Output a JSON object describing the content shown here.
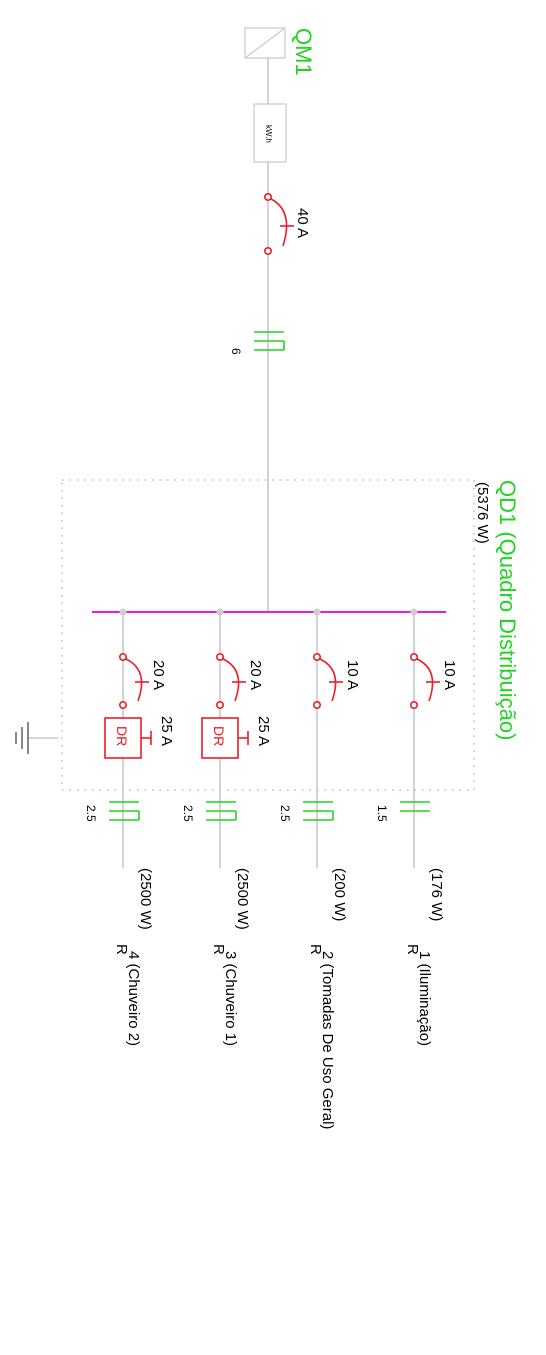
{
  "colors": {
    "wire": "#c8c8c8",
    "breaker": "#ee1c25",
    "cable": "#22d322",
    "busbar": "#e619e6",
    "label": "#000000",
    "title": "#22d322"
  },
  "supply": {
    "name": "QM1",
    "meter_label": "kW.h",
    "main_breaker": "40 A",
    "cable_size": "6"
  },
  "panel": {
    "name": "QD1 (Quadro Distribuição)",
    "power": "(5376 W)"
  },
  "circuits": [
    {
      "breaker": "10 A",
      "rcd": "",
      "rcd_label": "",
      "cable": "1.5",
      "power": "(176 W)",
      "load_type": "R",
      "label": "1 (Iluminação)"
    },
    {
      "breaker": "10 A",
      "rcd": "",
      "rcd_label": "",
      "cable": "2.5",
      "power": "(200 W)",
      "load_type": "R",
      "label": "2 (Tomadas De Uso Geral)"
    },
    {
      "breaker": "20 A",
      "rcd": "25 A",
      "rcd_label": "DR",
      "cable": "2.5",
      "power": "(2500 W)",
      "load_type": "R",
      "label": "3 (Chuveiro 1)"
    },
    {
      "breaker": "20 A",
      "rcd": "25 A",
      "rcd_label": "DR",
      "cable": "2.5",
      "power": "(2500 W)",
      "load_type": "R",
      "label": "4 (Chuveiro 2)"
    }
  ]
}
